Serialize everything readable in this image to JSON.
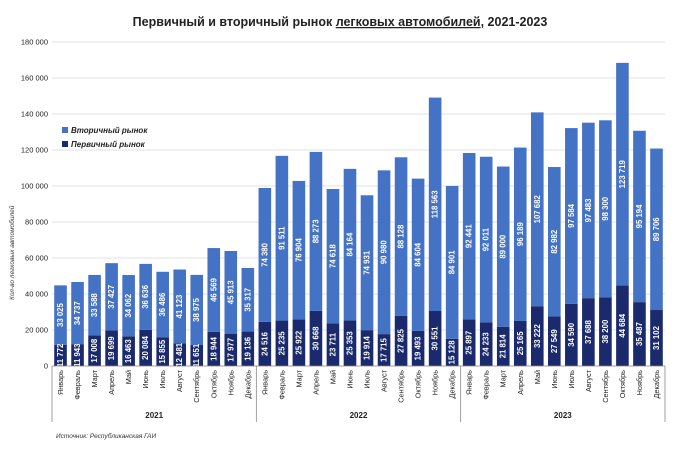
{
  "chart_data": {
    "type": "bar",
    "stacked": true,
    "title_part1": "Первичный и вторичный рынок ",
    "title_part2": "легковых автомобилей",
    "title_part3": ", 2021-2023",
    "ylabel": "Кол-во легковых автомобилей",
    "ylim": [
      0,
      180000
    ],
    "yticks": [
      0,
      20000,
      40000,
      60000,
      80000,
      100000,
      120000,
      140000,
      160000,
      180000
    ],
    "ytick_labels": [
      "0",
      "20 000",
      "40 000",
      "60 000",
      "80 000",
      "100 000",
      "120 000",
      "140 000",
      "160 000",
      "180 000"
    ],
    "months": [
      "Январь",
      "Февраль",
      "Март",
      "Апрель",
      "Май",
      "Июнь",
      "Июль",
      "Август",
      "Сентябрь",
      "Октябрь",
      "Ноябрь",
      "Декабрь"
    ],
    "years": [
      "2021",
      "2022",
      "2023"
    ],
    "series": [
      {
        "name": "Первичный рынок",
        "color": "#1a2a6c",
        "values": [
          11772,
          11943,
          17008,
          19699,
          16463,
          20084,
          15855,
          12481,
          11651,
          18944,
          17977,
          19136,
          24516,
          25235,
          25922,
          30668,
          23711,
          25353,
          19914,
          17715,
          27825,
          19493,
          30551,
          15128,
          25897,
          24233,
          21814,
          25165,
          33222,
          27549,
          34590,
          37688,
          38200,
          44684,
          35487,
          31102
        ],
        "labels": [
          "11 772",
          "11 943",
          "17 008",
          "19 699",
          "16 463",
          "20 084",
          "15 855",
          "12 481",
          "11 651",
          "18 944",
          "17 977",
          "19 136",
          "24 516",
          "25 235",
          "25 922",
          "30 668",
          "23 711",
          "25 353",
          "19 914",
          "17 715",
          "27 825",
          "19 493",
          "30 551",
          "15 128",
          "25 897",
          "24 233",
          "21 814",
          "25 165",
          "33 222",
          "27 549",
          "34 590",
          "37 688",
          "38 200",
          "44 684",
          "35 487",
          "31 102"
        ]
      },
      {
        "name": "Вторичный рынок",
        "color": "#4472c4",
        "values": [
          33025,
          34737,
          33588,
          37427,
          34062,
          36636,
          36486,
          41123,
          38975,
          46569,
          45913,
          35317,
          74380,
          91511,
          76904,
          88273,
          74618,
          84164,
          74931,
          90980,
          88128,
          84604,
          118563,
          84901,
          92441,
          92011,
          89000,
          96189,
          107682,
          82982,
          97584,
          97483,
          98300,
          123719,
          95194,
          89706
        ],
        "labels": [
          "33 025",
          "34 737",
          "33 588",
          "37 427",
          "34 062",
          "36 636",
          "36 486",
          "41 123",
          "38 975",
          "46 569",
          "45 913",
          "35 317",
          "74 380",
          "91 511",
          "76 904",
          "88 273",
          "74 618",
          "84 164",
          "74 931",
          "90 980",
          "88 128",
          "84 604",
          "118 563",
          "84 901",
          "92 441",
          "92 011",
          "89 000",
          "96 189",
          "107 682",
          "82 982",
          "97 584",
          "97 483",
          "98 300",
          "123 719",
          "95 194",
          "89 706"
        ]
      }
    ],
    "legend": [
      "Вторичный рынок",
      "Первичный рынок"
    ],
    "legend_position": "top-left",
    "grid": true,
    "source": "Источник: Республиканская ГАИ"
  }
}
